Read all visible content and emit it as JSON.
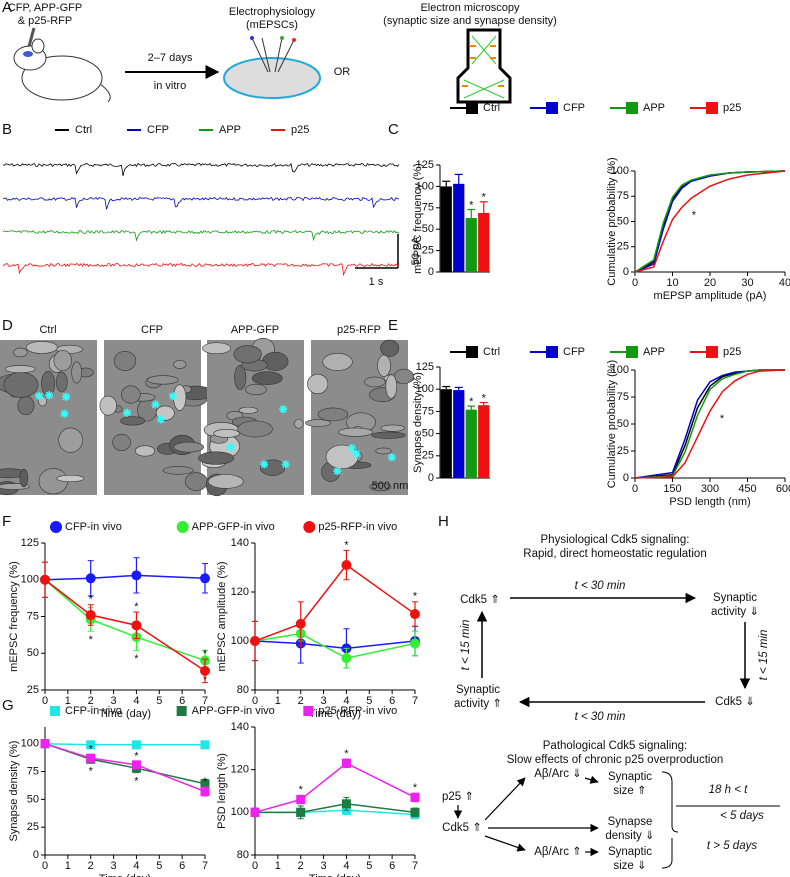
{
  "figure": {
    "panel_labels": [
      "A",
      "B",
      "C",
      "D",
      "E",
      "F",
      "G",
      "H"
    ],
    "a": {
      "injection": [
        "CFP, APP-GFP",
        "& p25-RFP"
      ],
      "duration": "2–7 days",
      "condition": "in vitro",
      "ephys": [
        "Electrophysiology",
        "(mEPSCs)"
      ],
      "or": "OR",
      "em": [
        "Electron microscopy",
        "(synaptic size and synapse density)"
      ]
    },
    "b": {
      "traces": [
        {
          "name": "Ctrl",
          "color": "#000000"
        },
        {
          "name": "CFP",
          "color": "#0000cc"
        },
        {
          "name": "APP",
          "color": "#119911"
        },
        {
          "name": "p25",
          "color": "#ee1111"
        }
      ],
      "scale_y": "50 pA",
      "scale_x": "1 s"
    },
    "d": {
      "images": [
        {
          "label": "Ctrl",
          "color": "#000000"
        },
        {
          "label": "CFP",
          "color": "#0000cc"
        },
        {
          "label": "APP-GFP",
          "color": "#119911"
        },
        {
          "label": "p25-RFP",
          "color": "#ee1111"
        }
      ],
      "scale": "500 nm"
    },
    "h": {
      "physiological": {
        "title": [
          "Physiological Cdk5 signaling:",
          "Rapid, direct homeostatic regulation"
        ],
        "cdk5_up": "Cdk5 ⇑",
        "activity_down": [
          "Synaptic",
          "activity ⇓"
        ],
        "cdk5_down": "Cdk5 ⇓",
        "activity_up": [
          "Synaptic",
          "activity ⇑"
        ],
        "t_top": "t < 30 min",
        "t_right": "t < 15 min",
        "t_bottom": "t < 30 min",
        "t_left": "t < 15 min"
      },
      "pathological": {
        "title": [
          "Pathological Cdk5 signaling:",
          "Slow effects of chronic p25 overproduction"
        ],
        "p25": "p25 ⇑",
        "cdk5": "Cdk5 ⇑",
        "abeta_down": "Aβ/Arc ⇓",
        "abeta_up": "Aβ/Arc ⇑",
        "size_up": [
          "Synaptic",
          "size ⇑"
        ],
        "density": [
          "Synapse",
          "density ⇓"
        ],
        "size_down": [
          "Synaptic",
          "size ⇓"
        ],
        "early": [
          "18 h < t",
          "< 5 days"
        ],
        "late": "t > 5 days"
      }
    }
  },
  "chart_data": [
    {
      "type": "bar",
      "ylabel": "mEPSC frequency (%)",
      "values": [
        100,
        103,
        63,
        69
      ],
      "errors": [
        6,
        11,
        10,
        13
      ],
      "colors": [
        "#000000",
        "#0000cc",
        "#119911",
        "#ee1111"
      ],
      "significance": [
        null,
        null,
        "*",
        "*"
      ],
      "ylim": [
        0,
        125
      ],
      "yticks": [
        0,
        25,
        50,
        75,
        100,
        125
      ]
    },
    {
      "type": "line",
      "legend": "top",
      "xlabel": "mEPSP amplitude (pA)",
      "ylabel": "Cumulative probability (%)",
      "x": [
        0,
        5,
        7.5,
        10,
        12.5,
        15,
        20,
        25,
        30,
        40
      ],
      "xlim": [
        0,
        40
      ],
      "xticks": [
        0,
        10,
        20,
        30,
        40
      ],
      "ylim": [
        0,
        100
      ],
      "yticks": [
        0,
        25,
        50,
        75,
        100
      ],
      "series": [
        {
          "name": "Ctrl",
          "color": "#000000",
          "values": [
            0,
            10,
            45,
            72,
            84,
            90,
            95,
            98,
            99,
            100
          ]
        },
        {
          "name": "CFP",
          "color": "#0000cc",
          "values": [
            0,
            8,
            42,
            70,
            83,
            90,
            95,
            98,
            99,
            100
          ]
        },
        {
          "name": "APP",
          "color": "#119911",
          "values": [
            0,
            12,
            48,
            74,
            86,
            91,
            96,
            98,
            99,
            100
          ]
        },
        {
          "name": "p25",
          "color": "#ee1111",
          "values": [
            0,
            5,
            30,
            52,
            64,
            73,
            85,
            92,
            96,
            100
          ],
          "significance": [
            null,
            null,
            null,
            null,
            "*",
            null,
            null,
            null,
            null,
            null
          ]
        }
      ]
    },
    {
      "type": "bar",
      "ylabel": "Synapse density (%)",
      "values": [
        100,
        99,
        77,
        82
      ],
      "errors": [
        3,
        3,
        4,
        3
      ],
      "colors": [
        "#000000",
        "#0000cc",
        "#119911",
        "#ee1111"
      ],
      "significance": [
        null,
        null,
        "*",
        "*"
      ],
      "ylim": [
        0,
        125
      ],
      "yticks": [
        0,
        25,
        50,
        75,
        100,
        125
      ]
    },
    {
      "type": "line",
      "legend": "top",
      "xlabel": "PSD length (nm)",
      "ylabel": "Cumulative probability (%)",
      "x": [
        0,
        150,
        200,
        250,
        300,
        350,
        400,
        450,
        500,
        600
      ],
      "xlim": [
        0,
        600
      ],
      "xticks": [
        0,
        150,
        300,
        450,
        600
      ],
      "ylim": [
        0,
        100
      ],
      "yticks": [
        0,
        25,
        50,
        75,
        100
      ],
      "series": [
        {
          "name": "Ctrl",
          "color": "#000000",
          "values": [
            0,
            3,
            30,
            65,
            85,
            94,
            97,
            99,
            100,
            100
          ]
        },
        {
          "name": "CFP",
          "color": "#0000cc",
          "values": [
            0,
            5,
            36,
            72,
            89,
            95,
            98,
            99,
            100,
            100
          ]
        },
        {
          "name": "APP",
          "color": "#119911",
          "values": [
            0,
            2,
            24,
            58,
            82,
            92,
            96,
            99,
            100,
            100
          ]
        },
        {
          "name": "p25",
          "color": "#ee1111",
          "values": [
            0,
            1,
            14,
            38,
            62,
            80,
            90,
            96,
            99,
            100
          ],
          "significance": [
            null,
            null,
            null,
            null,
            "*",
            null,
            null,
            null,
            null,
            null
          ]
        }
      ]
    },
    {
      "type": "line",
      "legend": "top",
      "xlabel": "Time (day)",
      "ylabel": "mEPSC frequency (%)",
      "x": [
        0,
        2,
        4,
        7
      ],
      "xlim": [
        0,
        7
      ],
      "xticks": [
        0,
        1,
        2,
        3,
        4,
        5,
        6,
        7
      ],
      "ylim": [
        25,
        125
      ],
      "yticks": [
        25,
        50,
        75,
        100,
        125
      ],
      "series": [
        {
          "name": "CFP-in vivo",
          "color": "#1a1aff",
          "marker": "circle",
          "values": [
            100,
            101,
            103,
            101
          ],
          "errors": [
            12,
            12,
            12,
            10
          ]
        },
        {
          "name": "APP-GFP-in vivo",
          "color": "#33ee33",
          "marker": "circle",
          "values": [
            100,
            73,
            61,
            45
          ],
          "errors": [
            12,
            8,
            9,
            7
          ],
          "significance": [
            null,
            "*",
            "*",
            "*"
          ]
        },
        {
          "name": "p25-RFP-in vivo",
          "color": "#ee1111",
          "marker": "circle",
          "values": [
            100,
            76,
            69,
            38
          ],
          "errors": [
            12,
            7,
            9,
            8
          ],
          "significance": [
            null,
            "*",
            "*",
            "*"
          ]
        }
      ]
    },
    {
      "type": "line",
      "xlabel": "Time (day)",
      "ylabel": "mEPSC amplitude (%)",
      "x": [
        0,
        2,
        4,
        7
      ],
      "xlim": [
        0,
        7
      ],
      "xticks": [
        0,
        1,
        2,
        3,
        4,
        5,
        6,
        7
      ],
      "ylim": [
        80,
        140
      ],
      "yticks": [
        80,
        100,
        120,
        140
      ],
      "series": [
        {
          "color": "#1a1aff",
          "marker": "circle",
          "values": [
            100,
            99,
            97,
            100
          ],
          "errors": [
            8,
            8,
            8,
            6
          ]
        },
        {
          "color": "#33ee33",
          "marker": "circle",
          "values": [
            100,
            103,
            93,
            99
          ],
          "errors": [
            8,
            3,
            4,
            5
          ]
        },
        {
          "color": "#ee1111",
          "marker": "circle",
          "values": [
            100,
            107,
            131,
            111
          ],
          "errors": [
            8,
            9,
            6,
            5
          ],
          "significance": [
            null,
            null,
            "*",
            "*"
          ]
        }
      ]
    },
    {
      "type": "line",
      "legend": "top",
      "xlabel": "Time (day)",
      "ylabel": "Synapse density (%)",
      "x": [
        0,
        2,
        4,
        7
      ],
      "xlim": [
        0,
        7
      ],
      "xticks": [
        0,
        1,
        2,
        3,
        4,
        5,
        6,
        7
      ],
      "ylim": [
        0,
        115
      ],
      "yticks": [
        0,
        25,
        50,
        75,
        100
      ],
      "series": [
        {
          "name": "CFP-in vivo",
          "color": "#22e5e5",
          "marker": "square",
          "values": [
            100,
            99,
            99,
            99
          ],
          "errors": [
            2,
            2,
            2,
            2
          ]
        },
        {
          "name": "APP-GFP-in vivo",
          "color": "#1e7a40",
          "marker": "square",
          "values": [
            100,
            86,
            78,
            64
          ],
          "errors": [
            2,
            3,
            4,
            4
          ],
          "significance": [
            null,
            "*",
            "*",
            "*"
          ]
        },
        {
          "name": "p25-RFP-in vivo",
          "color": "#ee22ee",
          "marker": "square",
          "values": [
            100,
            87,
            81,
            57
          ],
          "errors": [
            2,
            3,
            3,
            4
          ],
          "significance": [
            null,
            "*",
            "*",
            "*"
          ]
        }
      ]
    },
    {
      "type": "line",
      "xlabel": "Time (day)",
      "ylabel": "PSD length (%)",
      "x": [
        0,
        2,
        4,
        7
      ],
      "xlim": [
        0,
        7
      ],
      "xticks": [
        0,
        1,
        2,
        3,
        4,
        5,
        6,
        7
      ],
      "ylim": [
        80,
        140
      ],
      "yticks": [
        80,
        100,
        120,
        140
      ],
      "series": [
        {
          "color": "#22e5e5",
          "marker": "square",
          "values": [
            100,
            100,
            101,
            99
          ],
          "errors": [
            2,
            2,
            2,
            2
          ]
        },
        {
          "color": "#1e7a40",
          "marker": "square",
          "values": [
            100,
            100,
            104,
            100
          ],
          "errors": [
            2,
            3,
            3,
            2
          ]
        },
        {
          "color": "#ee22ee",
          "marker": "square",
          "values": [
            100,
            106,
            123,
            107
          ],
          "errors": [
            2,
            2,
            2,
            2
          ],
          "significance": [
            null,
            "*",
            "*",
            "*"
          ]
        }
      ]
    }
  ]
}
